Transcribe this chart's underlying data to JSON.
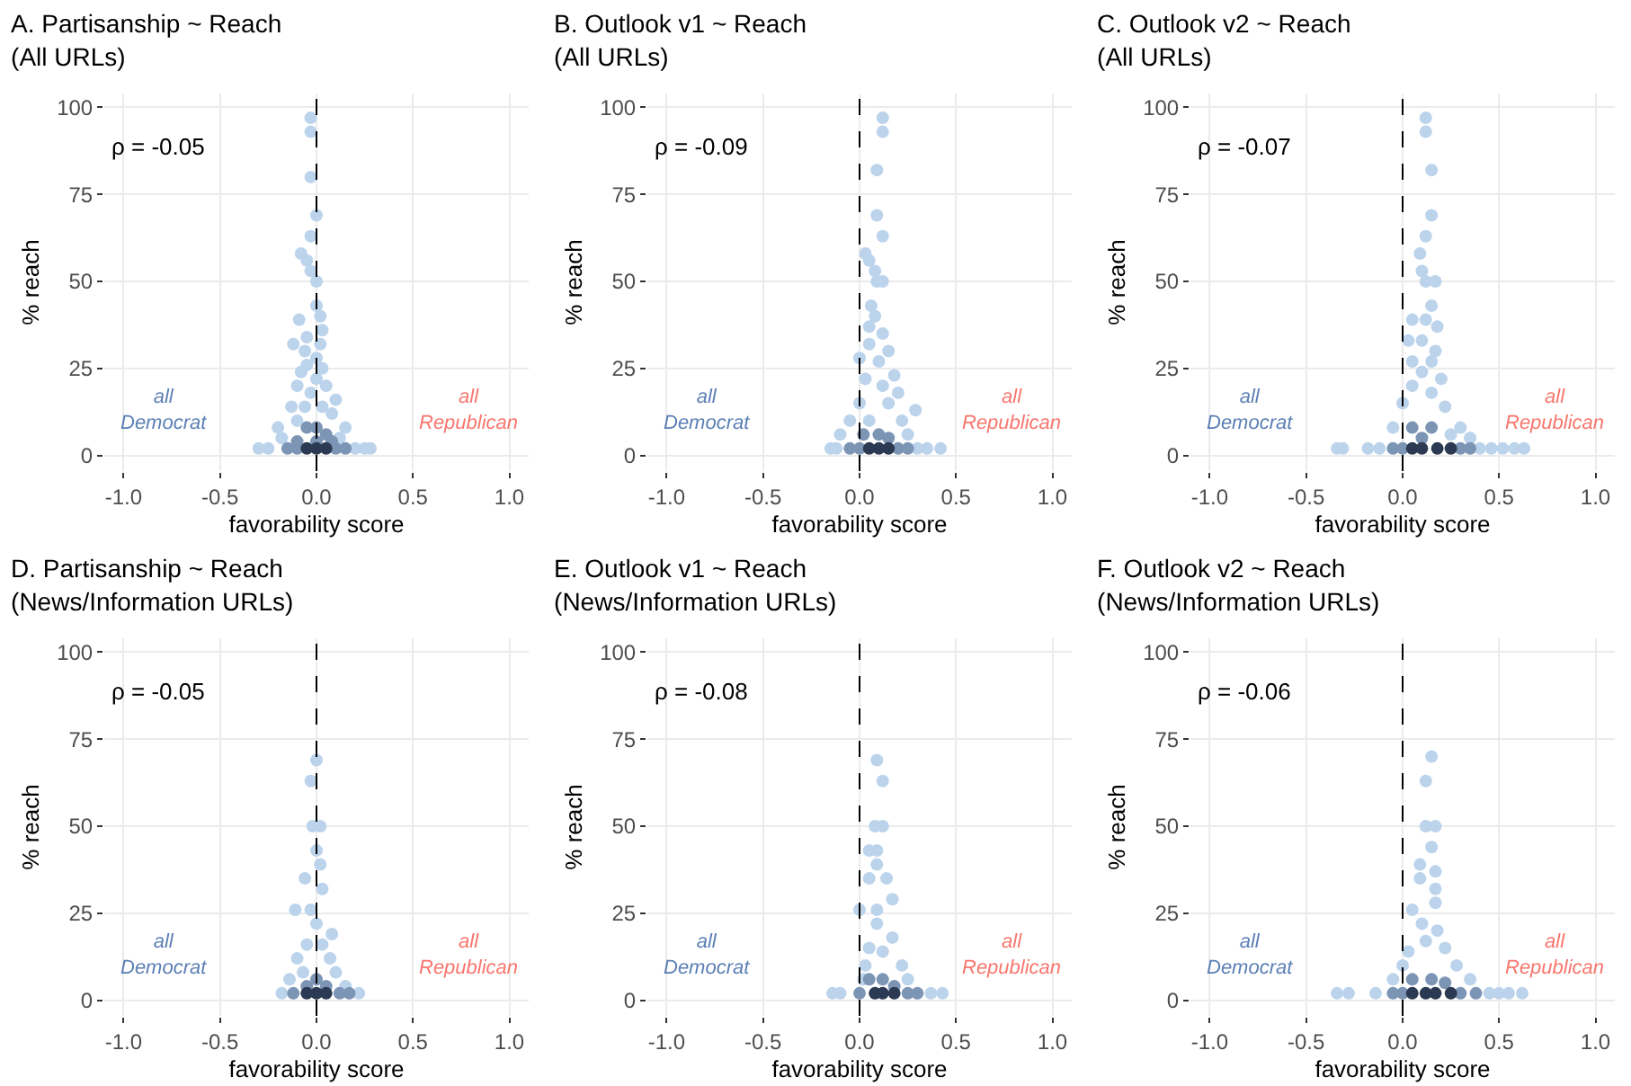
{
  "chart_data": [
    {
      "type": "scatter",
      "title": "A. Partisanship ~ Reach\n(All URLs)",
      "xlabel": "favorability score",
      "ylabel": "% reach",
      "xlim": [
        -1.1,
        1.1
      ],
      "xticks": [
        {
          "value": -1,
          "label": "-1.0"
        },
        {
          "value": -0.5,
          "label": "-0.5"
        },
        {
          "value": 0,
          "label": "0.0"
        },
        {
          "value": 0.5,
          "label": "0.5"
        },
        {
          "value": 1,
          "label": "1.0"
        }
      ],
      "ylim": [
        -4.5,
        104
      ],
      "yticks": [
        0,
        25,
        50,
        75,
        100
      ],
      "grid": true,
      "marker": "circle",
      "ref_lines": [
        {
          "axis": "x",
          "value": 0,
          "line_style": "dashed",
          "color": "#000000"
        }
      ],
      "annotations": [
        "ρ = -0.05",
        "all\nDemocrat",
        "all\nRepublican"
      ],
      "series": [
        {
          "color": "#bcd3ec",
          "x": [
            -0.03,
            -0.03,
            -0.03,
            0,
            -0.03,
            -0.08,
            -0.05,
            -0.03,
            0,
            0,
            0.02,
            -0.09,
            0.03,
            -0.05,
            -0.12,
            0.02,
            -0.06,
            0,
            -0.05,
            0.03,
            -0.08,
            0,
            -0.1,
            0.05,
            -0.03,
            0.1,
            -0.13,
            -0.06,
            0.03,
            0.08,
            -0.2,
            -0.1,
            0.15,
            -0.18,
            0.12,
            -0.3,
            -0.25,
            0.25,
            0.28,
            0.2
          ],
          "values": [
            97,
            93,
            80,
            69,
            63,
            58,
            56,
            53,
            50,
            43,
            40,
            39,
            36,
            34,
            32,
            32,
            30,
            28,
            26,
            25,
            24,
            22,
            20,
            20,
            18,
            16,
            14,
            14,
            14,
            12,
            8,
            10,
            8,
            5,
            5,
            2,
            2,
            2,
            2,
            2
          ]
        },
        {
          "color": "#7d95b5",
          "x": [
            -0.05,
            0,
            0.05,
            -0.1,
            0,
            0.08,
            -0.15,
            0.15,
            -0.1,
            0.1
          ],
          "values": [
            8,
            8,
            6,
            4,
            4,
            4,
            2,
            2,
            2,
            2
          ]
        },
        {
          "color": "#2b3a52",
          "x": [
            -0.05,
            0,
            0.05
          ],
          "values": [
            2,
            2,
            2
          ]
        }
      ]
    },
    {
      "type": "scatter",
      "title": "B. Outlook v1 ~ Reach\n(All URLs)",
      "xlabel": "favorability score",
      "ylabel": "% reach",
      "xlim": [
        -1.1,
        1.1
      ],
      "xticks": [
        {
          "value": -1,
          "label": "-1.0"
        },
        {
          "value": -0.5,
          "label": "-0.5"
        },
        {
          "value": 0,
          "label": "0.0"
        },
        {
          "value": 0.5,
          "label": "0.5"
        },
        {
          "value": 1,
          "label": "1.0"
        }
      ],
      "ylim": [
        -4.5,
        104
      ],
      "yticks": [
        0,
        25,
        50,
        75,
        100
      ],
      "grid": true,
      "marker": "circle",
      "ref_lines": [
        {
          "axis": "x",
          "value": 0,
          "line_style": "dashed",
          "color": "#000000"
        }
      ],
      "annotations": [
        "ρ = -0.09",
        "all\nDemocrat",
        "all\nRepublican"
      ],
      "series": [
        {
          "color": "#bcd3ec",
          "x": [
            0.12,
            0.12,
            0.09,
            0.09,
            0.12,
            0.03,
            0.05,
            0.08,
            0.09,
            0.12,
            0.06,
            0.08,
            0.05,
            0.12,
            0.05,
            0.15,
            0,
            0.1,
            0.18,
            0.03,
            0.12,
            0.2,
            0,
            0.15,
            0.29,
            -0.05,
            0.22,
            -0.1,
            0.05,
            0.25,
            -0.15,
            -0.12,
            0.35,
            0.42,
            0.3
          ],
          "values": [
            97,
            93,
            82,
            69,
            63,
            58,
            56,
            53,
            50,
            50,
            43,
            40,
            37,
            35,
            32,
            30,
            28,
            27,
            23,
            22,
            20,
            18,
            15,
            15,
            13,
            10,
            10,
            6,
            10,
            6,
            2,
            2,
            2,
            2,
            2
          ]
        },
        {
          "color": "#7d95b5",
          "x": [
            0.02,
            0.1,
            0.15,
            0,
            0.2,
            0.25,
            -0.05
          ],
          "values": [
            6,
            6,
            5,
            2,
            2,
            2,
            2
          ]
        },
        {
          "color": "#2b3a52",
          "x": [
            0.05,
            0.1,
            0.15
          ],
          "values": [
            2,
            2,
            2
          ]
        }
      ]
    },
    {
      "type": "scatter",
      "title": "C. Outlook v2 ~ Reach\n(All URLs)",
      "xlabel": "favorability score",
      "ylabel": "% reach",
      "xlim": [
        -1.1,
        1.1
      ],
      "xticks": [
        {
          "value": -1,
          "label": "-1.0"
        },
        {
          "value": -0.5,
          "label": "-0.5"
        },
        {
          "value": 0,
          "label": "0.0"
        },
        {
          "value": 0.5,
          "label": "0.5"
        },
        {
          "value": 1,
          "label": "1.0"
        }
      ],
      "ylim": [
        -4.5,
        104
      ],
      "yticks": [
        0,
        25,
        50,
        75,
        100
      ],
      "grid": true,
      "marker": "circle",
      "ref_lines": [
        {
          "axis": "x",
          "value": 0,
          "line_style": "dashed",
          "color": "#000000"
        }
      ],
      "annotations": [
        "ρ = -0.07",
        "all\nDemocrat",
        "all\nRepublican"
      ],
      "series": [
        {
          "color": "#bcd3ec",
          "x": [
            0.12,
            0.12,
            0.15,
            0.15,
            0.12,
            0.09,
            0.1,
            0.12,
            0.17,
            0.15,
            0.05,
            0.12,
            0.18,
            0.03,
            0.1,
            0.17,
            0.05,
            0.15,
            0.1,
            0.2,
            0.05,
            0.15,
            0,
            0.22,
            -0.05,
            0.3,
            -0.34,
            -0.31,
            -0.18,
            -0.12,
            0.4,
            0.46,
            0.52,
            0.58,
            0.63,
            0.25,
            0.35
          ],
          "values": [
            97,
            93,
            82,
            69,
            63,
            58,
            53,
            50,
            50,
            43,
            39,
            39,
            37,
            33,
            33,
            30,
            27,
            27,
            24,
            22,
            20,
            18,
            15,
            14,
            8,
            8,
            2,
            2,
            2,
            2,
            2,
            2,
            2,
            2,
            2,
            6,
            5
          ]
        },
        {
          "color": "#7d95b5",
          "x": [
            0.05,
            0.15,
            0.1,
            -0.05,
            0,
            0.3,
            0.35
          ],
          "values": [
            8,
            8,
            5,
            2,
            2,
            2,
            2
          ]
        },
        {
          "color": "#2b3a52",
          "x": [
            0.05,
            0.1,
            0.18,
            0.25
          ],
          "values": [
            2,
            2,
            2,
            2
          ]
        }
      ]
    },
    {
      "type": "scatter",
      "title": "D. Partisanship ~ Reach\n(News/Information URLs)",
      "xlabel": "favorability score",
      "ylabel": "% reach",
      "xlim": [
        -1.1,
        1.1
      ],
      "xticks": [
        {
          "value": -1,
          "label": "-1.0"
        },
        {
          "value": -0.5,
          "label": "-0.5"
        },
        {
          "value": 0,
          "label": "0.0"
        },
        {
          "value": 0.5,
          "label": "0.5"
        },
        {
          "value": 1,
          "label": "1.0"
        }
      ],
      "ylim": [
        -4.5,
        104
      ],
      "yticks": [
        0,
        25,
        50,
        75,
        100
      ],
      "grid": true,
      "marker": "circle",
      "ref_lines": [
        {
          "axis": "x",
          "value": 0,
          "line_style": "dashed",
          "color": "#000000"
        }
      ],
      "annotations": [
        "ρ = -0.05",
        "all\nDemocrat",
        "all\nRepublican"
      ],
      "series": [
        {
          "color": "#bcd3ec",
          "x": [
            0,
            -0.03,
            -0.02,
            0.02,
            0,
            0.02,
            -0.06,
            0.03,
            -0.11,
            -0.03,
            0,
            0.08,
            -0.05,
            0.03,
            -0.1,
            0.07,
            -0.14,
            0.1,
            -0.18,
            0.22,
            -0.07,
            0.15
          ],
          "values": [
            69,
            63,
            50,
            50,
            43,
            39,
            35,
            32,
            26,
            26,
            22,
            19,
            16,
            16,
            12,
            12,
            6,
            8,
            2,
            2,
            8,
            4
          ]
        },
        {
          "color": "#7d95b5",
          "x": [
            -0.05,
            0,
            0.05,
            -0.12,
            0.12,
            0.17
          ],
          "values": [
            4,
            6,
            4,
            2,
            2,
            2
          ]
        },
        {
          "color": "#2b3a52",
          "x": [
            -0.05,
            0,
            0.05
          ],
          "values": [
            2,
            2,
            2
          ]
        }
      ]
    },
    {
      "type": "scatter",
      "title": "E. Outlook v1 ~ Reach\n(News/Information URLs)",
      "xlabel": "favorability score",
      "ylabel": "% reach",
      "xlim": [
        -1.1,
        1.1
      ],
      "xticks": [
        {
          "value": -1,
          "label": "-1.0"
        },
        {
          "value": -0.5,
          "label": "-0.5"
        },
        {
          "value": 0,
          "label": "0.0"
        },
        {
          "value": 0.5,
          "label": "0.5"
        },
        {
          "value": 1,
          "label": "1.0"
        }
      ],
      "ylim": [
        -4.5,
        104
      ],
      "yticks": [
        0,
        25,
        50,
        75,
        100
      ],
      "grid": true,
      "marker": "circle",
      "ref_lines": [
        {
          "axis": "x",
          "value": 0,
          "line_style": "dashed",
          "color": "#000000"
        }
      ],
      "annotations": [
        "ρ = -0.08",
        "all\nDemocrat",
        "all\nRepublican"
      ],
      "series": [
        {
          "color": "#bcd3ec",
          "x": [
            0.09,
            0.12,
            0.08,
            0.12,
            0.05,
            0.09,
            0.09,
            0.05,
            0.14,
            0.17,
            0,
            0.09,
            0.09,
            0.17,
            0.05,
            0.12,
            0.03,
            0.22,
            0.25,
            -0.14,
            -0.1,
            0.37,
            0.43,
            0.02
          ],
          "values": [
            69,
            63,
            50,
            50,
            43,
            43,
            39,
            35,
            35,
            29,
            26,
            26,
            22,
            18,
            15,
            14,
            10,
            10,
            6,
            2,
            2,
            2,
            2,
            6
          ]
        },
        {
          "color": "#7d95b5",
          "x": [
            0.05,
            0.12,
            0.18,
            0,
            0.25,
            0.3
          ],
          "values": [
            6,
            6,
            4,
            2,
            2,
            2
          ]
        },
        {
          "color": "#2b3a52",
          "x": [
            0.08,
            0.12,
            0.18
          ],
          "values": [
            2,
            2,
            2
          ]
        }
      ]
    },
    {
      "type": "scatter",
      "title": "F. Outlook v2 ~ Reach\n(News/Information URLs)",
      "xlabel": "favorability score",
      "ylabel": "% reach",
      "xlim": [
        -1.1,
        1.1
      ],
      "xticks": [
        {
          "value": -1,
          "label": "-1.0"
        },
        {
          "value": -0.5,
          "label": "-0.5"
        },
        {
          "value": 0,
          "label": "0.0"
        },
        {
          "value": 0.5,
          "label": "0.5"
        },
        {
          "value": 1,
          "label": "1.0"
        }
      ],
      "ylim": [
        -4.5,
        104
      ],
      "yticks": [
        0,
        25,
        50,
        75,
        100
      ],
      "grid": true,
      "marker": "circle",
      "ref_lines": [
        {
          "axis": "x",
          "value": 0,
          "line_style": "dashed",
          "color": "#000000"
        }
      ],
      "annotations": [
        "ρ = -0.06",
        "all\nDemocrat",
        "all\nRepublican"
      ],
      "series": [
        {
          "color": "#bcd3ec",
          "x": [
            0.15,
            0.12,
            0.12,
            0.17,
            0.15,
            0.09,
            0.17,
            0.09,
            0.17,
            0.17,
            0.05,
            0.1,
            0.18,
            0.12,
            0.03,
            0.22,
            0,
            0.28,
            -0.05,
            0.35,
            -0.34,
            -0.28,
            -0.14,
            0.45,
            0.5,
            0.55,
            0.62
          ],
          "values": [
            70,
            63,
            50,
            50,
            44,
            39,
            37,
            35,
            32,
            28,
            26,
            22,
            20,
            17,
            14,
            15,
            10,
            10,
            6,
            6,
            2,
            2,
            2,
            2,
            2,
            2,
            2
          ]
        },
        {
          "color": "#7d95b5",
          "x": [
            0.05,
            0.15,
            0.22,
            -0.05,
            0,
            0.3,
            0.38
          ],
          "values": [
            6,
            6,
            5,
            2,
            2,
            2,
            2
          ]
        },
        {
          "color": "#2b3a52",
          "x": [
            0.05,
            0.12,
            0.17,
            0.25
          ],
          "values": [
            2,
            2,
            2,
            2
          ]
        }
      ]
    }
  ]
}
